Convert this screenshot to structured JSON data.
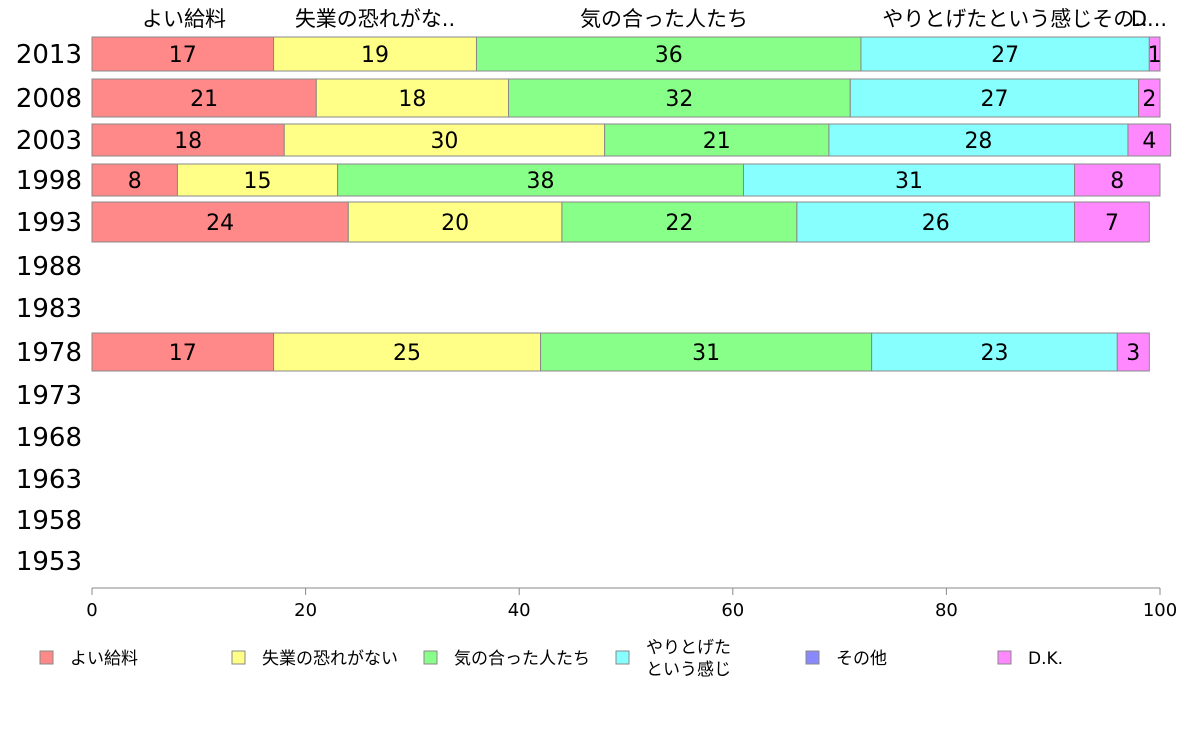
{
  "chart_data": {
    "type": "bar",
    "orientation": "horizontal",
    "stacked": true,
    "categories": [
      "2013",
      "2008",
      "2003",
      "1998",
      "1993",
      "1988",
      "1983",
      "1978",
      "1973",
      "1968",
      "1963",
      "1958",
      "1953"
    ],
    "top_labels": [
      "よい給料",
      "失業の恐れがな..",
      "気の合った人たち",
      "やりとげたという感じその..",
      "D..."
    ],
    "series": [
      {
        "name": "よい給料",
        "color": "#ff8888",
        "values": [
          17,
          21,
          18,
          8,
          24,
          null,
          null,
          17,
          null,
          null,
          null,
          null,
          null
        ]
      },
      {
        "name": "失業の恐れがない",
        "color": "#ffff88",
        "values": [
          19,
          18,
          30,
          15,
          20,
          null,
          null,
          25,
          null,
          null,
          null,
          null,
          null
        ]
      },
      {
        "name": "気の合った人たち",
        "color": "#88ff88",
        "values": [
          36,
          32,
          21,
          38,
          22,
          null,
          null,
          31,
          null,
          null,
          null,
          null,
          null
        ]
      },
      {
        "name": "やりとげたという感じ",
        "legend_lines": [
          "やりとげた",
          "という感じ"
        ],
        "color": "#88ffff",
        "values": [
          27,
          27,
          28,
          31,
          26,
          null,
          null,
          23,
          null,
          null,
          null,
          null,
          null
        ]
      },
      {
        "name": "その他",
        "color": "#8888ff",
        "values": [
          0,
          0,
          0,
          0,
          0,
          null,
          null,
          0,
          null,
          null,
          null,
          null,
          null
        ]
      },
      {
        "name": "D.K.",
        "color": "#ff88ff",
        "values": [
          1,
          2,
          4,
          8,
          7,
          null,
          null,
          3,
          null,
          null,
          null,
          null,
          null
        ]
      }
    ],
    "xlim": [
      0,
      100
    ],
    "x_ticks": [
      "0",
      "20",
      "40",
      "60",
      "80",
      "100"
    ],
    "grid": false,
    "legend_position": "bottom"
  }
}
